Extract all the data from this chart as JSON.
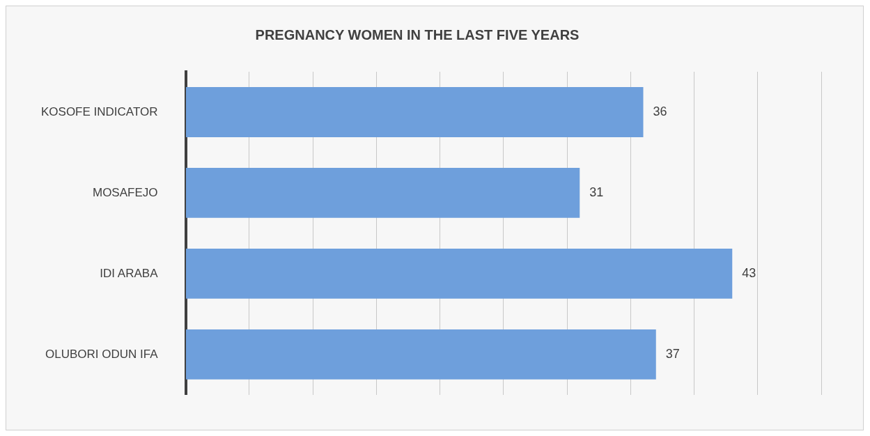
{
  "chart_data": {
    "type": "bar",
    "orientation": "horizontal",
    "title": "PREGNANCY WOMEN IN THE LAST FIVE YEARS",
    "categories": [
      "KOSOFE INDICATOR",
      "MOSAFEJO",
      "IDI ARABA",
      "OLUBORI ODUN IFA"
    ],
    "values": [
      36,
      31,
      43,
      37
    ],
    "color": "#6e9fdc",
    "data_labels": true,
    "legend": false,
    "grid": "x",
    "tick_labels": "y",
    "xlim": [
      0,
      50
    ],
    "xticks": [
      {
        "value": 0,
        "label": null
      },
      {
        "value": 5,
        "label": null
      },
      {
        "value": 10,
        "label": null
      },
      {
        "value": 15,
        "label": null
      },
      {
        "value": 20,
        "label": null
      },
      {
        "value": 25,
        "label": null
      },
      {
        "value": 30,
        "label": null
      },
      {
        "value": 35,
        "label": null
      },
      {
        "value": 40,
        "label": null
      },
      {
        "value": 45,
        "label": null
      },
      {
        "value": 50,
        "label": null
      }
    ]
  }
}
